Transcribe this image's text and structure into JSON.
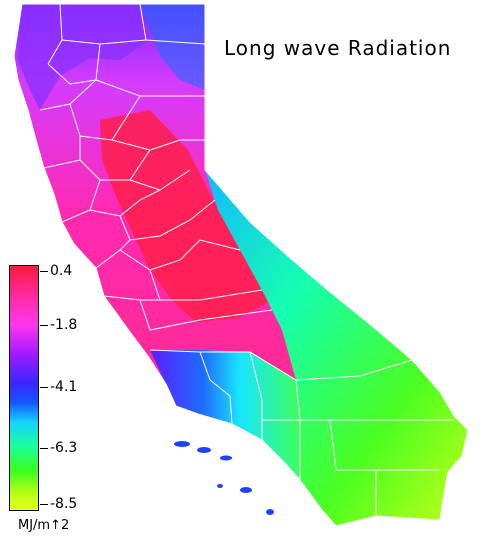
{
  "title": "Long wave Radiation",
  "legend": {
    "ticks": [
      "0.4",
      "-1.8",
      "-4.1",
      "-6.3",
      "-8.5"
    ],
    "unit": "MJ/m↑2"
  },
  "colors": {
    "high": "#ff1a3c",
    "mid_high": "#ff37ee",
    "mid": "#3826ff",
    "mid_low": "#14d4ff",
    "low_green": "#3cff1e",
    "lowest": "#e6ff1a",
    "boundary": "#ffffff"
  }
}
